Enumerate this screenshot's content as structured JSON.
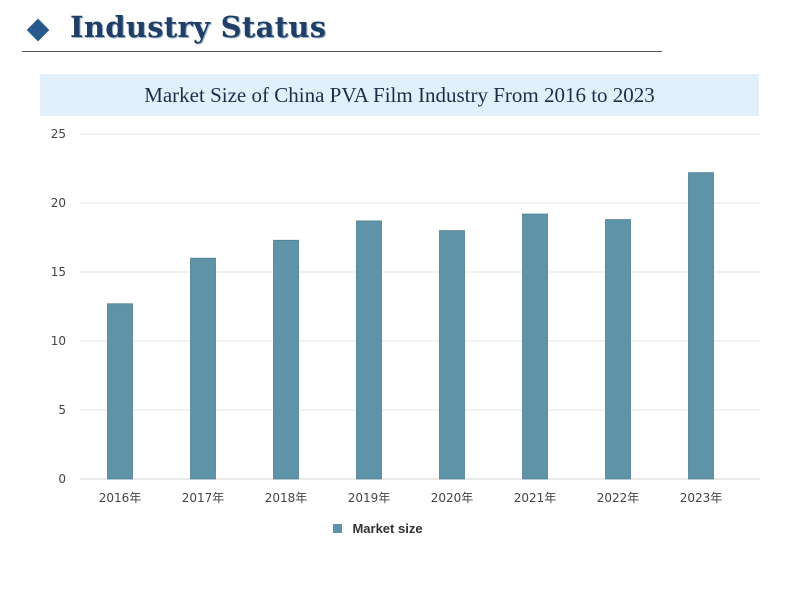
{
  "header": {
    "title": "Industry Status",
    "accent_color": "#27598a"
  },
  "chart_data": {
    "type": "bar",
    "title": "Market Size of China PVA Film Industry From 2016 to 2023",
    "categories": [
      "2016年",
      "2017年",
      "2018年",
      "2019年",
      "2020年",
      "2021年",
      "2022年",
      "2023年"
    ],
    "series": [
      {
        "name": "Market size",
        "values": [
          12.7,
          16.0,
          17.3,
          18.7,
          18.0,
          19.2,
          18.8,
          22.2
        ],
        "color": "#5f93a8"
      }
    ],
    "ylim": [
      0,
      25
    ],
    "yticks": [
      0,
      5,
      10,
      15,
      20,
      25
    ],
    "grid": true,
    "legend": "bottom"
  }
}
